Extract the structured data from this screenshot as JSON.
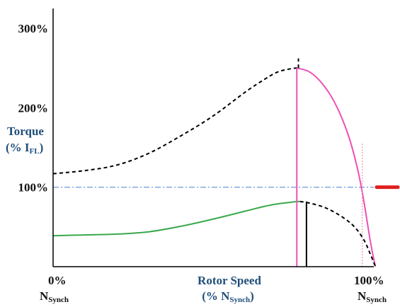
{
  "chart_data": {
    "type": "line",
    "title": "",
    "xlabel": {
      "line1": "Rotor Speed",
      "line2_pre": "(% N",
      "line2_sub": "Synch",
      "line2_post": ")"
    },
    "ylabel": {
      "line1": "Torque",
      "line2_pre": "(% I",
      "line2_sub": "FL",
      "line2_post": ")"
    },
    "xlim": [
      0,
      100
    ],
    "ylim": [
      0,
      300
    ],
    "y_ticks": [
      {
        "value": 100,
        "label": "100%"
      },
      {
        "value": 200,
        "label": "200%"
      },
      {
        "value": 300,
        "label": "300%"
      }
    ],
    "x_ticks": [
      {
        "value": 0,
        "label": "0%",
        "sub_main": "N",
        "sub": "Synch"
      },
      {
        "value": 100,
        "label": "100%",
        "sub_main": "N",
        "sub": "Synch"
      }
    ],
    "reference_line": {
      "y": 100,
      "style": "dash-dot",
      "color": "#5b8fd6"
    },
    "series": [
      {
        "key": "upper_dashed",
        "color": "#000000",
        "dash": "5,4",
        "x": [
          0,
          10,
          20,
          30,
          40,
          50,
          60,
          66,
          70,
          74,
          76,
          77
        ],
        "y": [
          117,
          121,
          128,
          143,
          165,
          190,
          220,
          236,
          245,
          249,
          250,
          250
        ]
      },
      {
        "key": "upper_pink",
        "color": "#ee4fb6",
        "dash": "",
        "x": [
          76,
          80,
          84,
          88,
          92,
          95,
          97,
          99,
          100.5
        ],
        "y": [
          250,
          245,
          230,
          205,
          166,
          122,
          80,
          30,
          0
        ]
      },
      {
        "key": "lower_green",
        "color": "#3aa84a",
        "dash": "",
        "x": [
          0,
          10,
          20,
          30,
          40,
          50,
          60,
          66,
          70,
          74,
          76,
          77
        ],
        "y": [
          39,
          40,
          41,
          44,
          51,
          60,
          70,
          76,
          79,
          81,
          82,
          82
        ]
      },
      {
        "key": "lower_dashed",
        "color": "#000000",
        "dash": "5,4",
        "x": [
          77,
          80,
          85,
          90,
          94,
          97,
          99,
          100.5
        ],
        "y": [
          82,
          80,
          74,
          63,
          50,
          33,
          15,
          0
        ]
      }
    ],
    "vertical_markers": [
      {
        "x": 76,
        "y0": 0,
        "y1": 250,
        "color": "#ee4fb6",
        "dash": ""
      },
      {
        "x": 76.5,
        "y0": 250,
        "y1": 262,
        "color": "#000000",
        "dash": "5,4"
      },
      {
        "x": 79,
        "y0": 0,
        "y1": 82,
        "color": "#000000",
        "dash": ""
      },
      {
        "x": 96.4,
        "y0": 0,
        "y1": 155,
        "color": "#e89aa0",
        "dash": "2,2"
      }
    ],
    "marker_bar": {
      "color": "#e01f1f",
      "y": 100
    },
    "grid": false,
    "legend": "none"
  }
}
